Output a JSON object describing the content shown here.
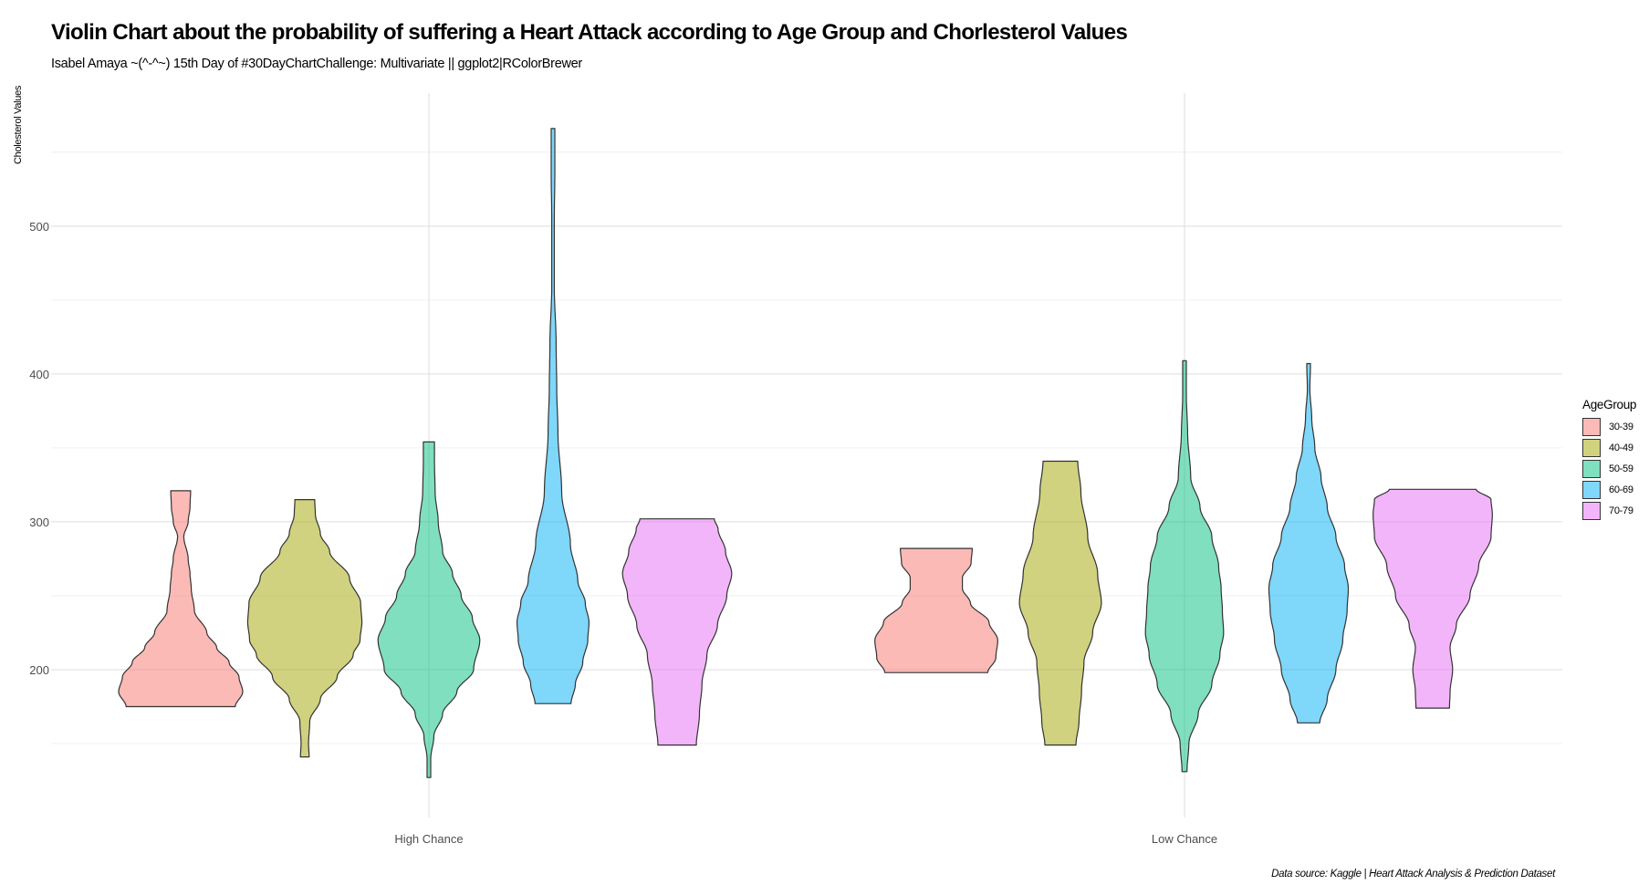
{
  "chart_data": {
    "type": "violin",
    "title": "Violin Chart about the probability of suffering a Heart Attack according to Age Group and Chorlesterol Values",
    "subtitle": "Isabel Amaya ~(^-^~) 15th Day of #30DayChartChallenge: Multivariate || ggplot2|RColorBrewer",
    "caption": "Data source: Kaggle | Heart Attack Analysis & Prediction Dataset",
    "xlabel": "",
    "ylabel": "Cholesterol Values",
    "ylim": [
      100,
      590
    ],
    "yticks": [
      200,
      300,
      400,
      500
    ],
    "categories": [
      "High Chance",
      "Low Chance"
    ],
    "legend": {
      "title": "AgeGroup",
      "position": "right"
    },
    "groups": [
      "30-39",
      "40-49",
      "50-59",
      "60-69",
      "70-79"
    ],
    "colors": [
      "#F8766D",
      "#A3A500",
      "#00BF7D",
      "#00B0F6",
      "#E76BF3"
    ],
    "violins": [
      {
        "category": "High Chance",
        "group": "30-39",
        "min": 175,
        "max": 321,
        "profile": [
          [
            175,
            0.88
          ],
          [
            185,
            1.0
          ],
          [
            195,
            0.94
          ],
          [
            205,
            0.78
          ],
          [
            215,
            0.58
          ],
          [
            225,
            0.42
          ],
          [
            240,
            0.22
          ],
          [
            255,
            0.17
          ],
          [
            265,
            0.15
          ],
          [
            275,
            0.12
          ],
          [
            290,
            0.05
          ],
          [
            300,
            0.12
          ],
          [
            310,
            0.15
          ],
          [
            321,
            0.16
          ]
        ]
      },
      {
        "category": "High Chance",
        "group": "40-49",
        "min": 141,
        "max": 315,
        "profile": [
          [
            141,
            0.07
          ],
          [
            150,
            0.06
          ],
          [
            165,
            0.08
          ],
          [
            180,
            0.25
          ],
          [
            195,
            0.52
          ],
          [
            210,
            0.78
          ],
          [
            220,
            0.89
          ],
          [
            232,
            0.92
          ],
          [
            245,
            0.9
          ],
          [
            262,
            0.72
          ],
          [
            280,
            0.4
          ],
          [
            292,
            0.25
          ],
          [
            305,
            0.17
          ],
          [
            315,
            0.16
          ]
        ]
      },
      {
        "category": "High Chance",
        "group": "50-59",
        "min": 127,
        "max": 354,
        "profile": [
          [
            127,
            0.03
          ],
          [
            140,
            0.03
          ],
          [
            155,
            0.08
          ],
          [
            170,
            0.22
          ],
          [
            185,
            0.45
          ],
          [
            200,
            0.72
          ],
          [
            220,
            0.82
          ],
          [
            235,
            0.7
          ],
          [
            250,
            0.52
          ],
          [
            265,
            0.38
          ],
          [
            280,
            0.22
          ],
          [
            300,
            0.15
          ],
          [
            320,
            0.1
          ],
          [
            340,
            0.09
          ],
          [
            354,
            0.09
          ]
        ]
      },
      {
        "category": "High Chance",
        "group": "60-69",
        "min": 177,
        "max": 566,
        "profile": [
          [
            177,
            0.29
          ],
          [
            190,
            0.36
          ],
          [
            205,
            0.48
          ],
          [
            220,
            0.56
          ],
          [
            232,
            0.58
          ],
          [
            245,
            0.52
          ],
          [
            260,
            0.4
          ],
          [
            285,
            0.28
          ],
          [
            320,
            0.14
          ],
          [
            360,
            0.08
          ],
          [
            390,
            0.06
          ],
          [
            420,
            0.05
          ],
          [
            460,
            0.02
          ],
          [
            500,
            0.02
          ],
          [
            540,
            0.03
          ],
          [
            566,
            0.03
          ]
        ]
      },
      {
        "category": "High Chance",
        "group": "70-79",
        "min": 149,
        "max": 302,
        "profile": [
          [
            149,
            0.31
          ],
          [
            170,
            0.36
          ],
          [
            190,
            0.4
          ],
          [
            210,
            0.48
          ],
          [
            230,
            0.65
          ],
          [
            250,
            0.8
          ],
          [
            265,
            0.88
          ],
          [
            280,
            0.78
          ],
          [
            295,
            0.66
          ],
          [
            302,
            0.6
          ]
        ]
      },
      {
        "category": "Low Chance",
        "group": "30-39",
        "min": 198,
        "max": 282,
        "profile": [
          [
            198,
            0.83
          ],
          [
            208,
            0.96
          ],
          [
            220,
            0.99
          ],
          [
            232,
            0.85
          ],
          [
            245,
            0.55
          ],
          [
            255,
            0.42
          ],
          [
            262,
            0.42
          ],
          [
            272,
            0.56
          ],
          [
            282,
            0.58
          ]
        ]
      },
      {
        "category": "Low Chance",
        "group": "40-49",
        "min": 149,
        "max": 341,
        "profile": [
          [
            149,
            0.25
          ],
          [
            165,
            0.3
          ],
          [
            185,
            0.34
          ],
          [
            205,
            0.38
          ],
          [
            225,
            0.52
          ],
          [
            245,
            0.66
          ],
          [
            265,
            0.6
          ],
          [
            290,
            0.44
          ],
          [
            320,
            0.33
          ],
          [
            341,
            0.28
          ]
        ]
      },
      {
        "category": "Low Chance",
        "group": "50-59",
        "min": 131,
        "max": 409,
        "profile": [
          [
            131,
            0.04
          ],
          [
            150,
            0.07
          ],
          [
            170,
            0.22
          ],
          [
            190,
            0.44
          ],
          [
            210,
            0.57
          ],
          [
            225,
            0.63
          ],
          [
            240,
            0.61
          ],
          [
            255,
            0.59
          ],
          [
            270,
            0.55
          ],
          [
            290,
            0.44
          ],
          [
            310,
            0.25
          ],
          [
            330,
            0.1
          ],
          [
            360,
            0.05
          ],
          [
            385,
            0.03
          ],
          [
            409,
            0.03
          ]
        ]
      },
      {
        "category": "Low Chance",
        "group": "60-69",
        "min": 164,
        "max": 407,
        "profile": [
          [
            164,
            0.18
          ],
          [
            180,
            0.3
          ],
          [
            200,
            0.44
          ],
          [
            220,
            0.55
          ],
          [
            240,
            0.62
          ],
          [
            255,
            0.64
          ],
          [
            270,
            0.58
          ],
          [
            290,
            0.44
          ],
          [
            310,
            0.3
          ],
          [
            330,
            0.2
          ],
          [
            350,
            0.1
          ],
          [
            370,
            0.05
          ],
          [
            390,
            0.02
          ],
          [
            407,
            0.03
          ]
        ]
      },
      {
        "category": "Low Chance",
        "group": "70-79",
        "min": 174,
        "max": 322,
        "profile": [
          [
            174,
            0.27
          ],
          [
            185,
            0.28
          ],
          [
            200,
            0.32
          ],
          [
            215,
            0.28
          ],
          [
            230,
            0.38
          ],
          [
            250,
            0.6
          ],
          [
            270,
            0.74
          ],
          [
            290,
            0.94
          ],
          [
            305,
            0.96
          ],
          [
            315,
            0.94
          ],
          [
            322,
            0.7
          ]
        ]
      }
    ]
  }
}
